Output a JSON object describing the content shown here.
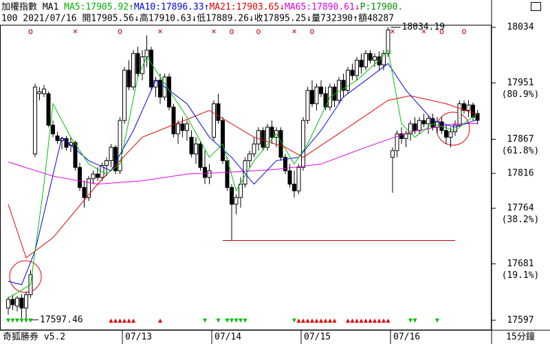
{
  "chart_data": {
    "type": "candlestick",
    "header": [
      {
        "text": "加權指數 MA1 ",
        "color": "#000000"
      },
      {
        "text": "MA5:17905.92↑",
        "color": "#00b000"
      },
      {
        "text": "MA10:17896.33↑",
        "color": "#0000e0"
      },
      {
        "text": "MA21:17903.65↓",
        "color": "#e00000"
      },
      {
        "text": "MA65:17890.61↓",
        "color": "#e000e0"
      },
      {
        "text": "P:17900.",
        "color": "#009000"
      }
    ],
    "subheader": "100 2021/07/16 開17905.56↓高17910.63↓低17889.26↓收17895.25↓量732390↑額48287",
    "footer_left": "奇狐勝券 v5.2",
    "period": "15分鐘",
    "categories": [
      null,
      null,
      null,
      null,
      null,
      null,
      null,
      null,
      null,
      null,
      null,
      null,
      null,
      null,
      null,
      null,
      null,
      null,
      null,
      null,
      null,
      null,
      null,
      null,
      null,
      null,
      "07/13",
      null,
      null,
      null,
      null,
      null,
      null,
      null,
      null,
      null,
      null,
      null,
      null,
      null,
      null,
      null,
      null,
      null,
      null,
      null,
      "07/14",
      null,
      null,
      null,
      null,
      null,
      null,
      null,
      null,
      null,
      null,
      null,
      null,
      null,
      null,
      null,
      null,
      null,
      null,
      null,
      "07/15",
      null,
      null,
      null,
      null,
      null,
      null,
      null,
      null,
      null,
      null,
      null,
      null,
      null,
      null,
      null,
      null,
      null,
      null,
      null,
      "07/16",
      null,
      null,
      null,
      null,
      null,
      null,
      null,
      null,
      null,
      null,
      null,
      null,
      null,
      null,
      null,
      null,
      null,
      null,
      null
    ],
    "ohlc": [
      [
        17615,
        17632,
        17605,
        17628
      ],
      [
        17628,
        17635,
        17612,
        17620
      ],
      [
        17618,
        17633,
        17610,
        17630
      ],
      [
        17630,
        17636,
        17600,
        17615
      ],
      [
        17615,
        17640,
        17597.46,
        17635
      ],
      [
        17635,
        17672,
        17630,
        17665
      ],
      [
        17845,
        17950,
        17840,
        17945
      ],
      [
        17935,
        17945,
        17925,
        17938
      ],
      [
        17935,
        17948,
        17930,
        17942
      ],
      [
        17935,
        17938,
        17885,
        17888
      ],
      [
        17888,
        17895,
        17870,
        17875
      ],
      [
        17872,
        17878,
        17860,
        17865
      ],
      [
        17865,
        17870,
        17852,
        17868
      ],
      [
        17868,
        17872,
        17850,
        17855
      ],
      [
        17858,
        17870,
        17848,
        17862
      ],
      [
        17862,
        17865,
        17820,
        17825
      ],
      [
        17825,
        17832,
        17790,
        17795
      ],
      [
        17795,
        17805,
        17765,
        17780
      ],
      [
        17780,
        17812,
        17775,
        17808
      ],
      [
        17808,
        17820,
        17800,
        17815
      ],
      [
        17815,
        17825,
        17805,
        17810
      ],
      [
        17810,
        17832,
        17805,
        17828
      ],
      [
        17828,
        17840,
        17812,
        17835
      ],
      [
        17835,
        17860,
        17825,
        17855
      ],
      [
        17855,
        17858,
        17815,
        17820
      ],
      [
        17820,
        17900,
        17815,
        17895
      ],
      [
        17895,
        17975,
        17890,
        17970
      ],
      [
        17970,
        17985,
        17940,
        17945
      ],
      [
        17945,
        18000,
        17940,
        17995
      ],
      [
        17995,
        18005,
        17960,
        17965
      ],
      [
        17965,
        18000,
        17955,
        17990
      ],
      [
        17990,
        18022,
        17975,
        18000
      ],
      [
        18000,
        18005,
        17940,
        17945
      ],
      [
        17945,
        17960,
        17930,
        17955
      ],
      [
        17955,
        17965,
        17920,
        17930
      ],
      [
        17930,
        17965,
        17925,
        17960
      ],
      [
        17960,
        17965,
        17910,
        17915
      ],
      [
        17915,
        17920,
        17870,
        17875
      ],
      [
        17875,
        17895,
        17860,
        17890
      ],
      [
        17890,
        17900,
        17870,
        17880
      ],
      [
        17880,
        17895,
        17865,
        17890
      ],
      [
        17870,
        17880,
        17840,
        17845
      ],
      [
        17845,
        17870,
        17830,
        17860
      ],
      [
        17860,
        17865,
        17820,
        17825
      ],
      [
        17825,
        17850,
        17800,
        17810
      ],
      [
        17810,
        17830,
        17800,
        17820
      ],
      [
        17870,
        17925,
        17865,
        17920
      ],
      [
        17920,
        17935,
        17890,
        17895
      ],
      [
        17895,
        17900,
        17830,
        17835
      ],
      [
        17835,
        17840,
        17790,
        17795
      ],
      [
        17795,
        17800,
        17716,
        17770
      ],
      [
        17770,
        17785,
        17755,
        17780
      ],
      [
        17780,
        17810,
        17765,
        17800
      ],
      [
        17800,
        17840,
        17795,
        17835
      ],
      [
        17835,
        17850,
        17825,
        17845
      ],
      [
        17845,
        17870,
        17840,
        17860
      ],
      [
        17860,
        17885,
        17850,
        17880
      ],
      [
        17880,
        17885,
        17850,
        17855
      ],
      [
        17855,
        17890,
        17850,
        17885
      ],
      [
        17885,
        17895,
        17860,
        17870
      ],
      [
        17870,
        17885,
        17855,
        17880
      ],
      [
        17880,
        17885,
        17835,
        17840
      ],
      [
        17840,
        17845,
        17815,
        17820
      ],
      [
        17820,
        17830,
        17795,
        17800
      ],
      [
        17800,
        17820,
        17780,
        17790
      ],
      [
        17790,
        17830,
        17785,
        17825
      ],
      [
        17825,
        17900,
        17820,
        17895
      ],
      [
        17895,
        17945,
        17890,
        17940
      ],
      [
        17940,
        17955,
        17915,
        17920
      ],
      [
        17920,
        17950,
        17910,
        17945
      ],
      [
        17945,
        17955,
        17930,
        17935
      ],
      [
        17935,
        17945,
        17910,
        17915
      ],
      [
        17915,
        17950,
        17910,
        17945
      ],
      [
        17945,
        17950,
        17915,
        17925
      ],
      [
        17925,
        17960,
        17920,
        17955
      ],
      [
        17955,
        17965,
        17930,
        17940
      ],
      [
        17940,
        17975,
        17935,
        17970
      ],
      [
        17970,
        17980,
        17955,
        17962
      ],
      [
        17962,
        17990,
        17955,
        17985
      ],
      [
        17985,
        17995,
        17965,
        17975
      ],
      [
        17975,
        18000,
        17970,
        17995
      ],
      [
        17995,
        18000,
        17980,
        17985
      ],
      [
        17985,
        17995,
        17975,
        17990
      ],
      [
        17990,
        17998,
        17970,
        17978
      ],
      [
        17978,
        18000,
        17970,
        17995
      ],
      [
        17995,
        18034.19,
        17990,
        18030
      ],
      [
        17840,
        17855,
        17787,
        17850
      ],
      [
        17850,
        17880,
        17840,
        17875
      ],
      [
        17875,
        17885,
        17860,
        17868
      ],
      [
        17868,
        17880,
        17855,
        17875
      ],
      [
        17875,
        17895,
        17865,
        17890
      ],
      [
        17890,
        17900,
        17875,
        17880
      ],
      [
        17880,
        17900,
        17875,
        17895
      ],
      [
        17895,
        17905,
        17885,
        17890
      ],
      [
        17890,
        17903,
        17875,
        17898
      ],
      [
        17898,
        17905,
        17880,
        17885
      ],
      [
        17885,
        17900,
        17875,
        17893
      ],
      [
        17893,
        17900,
        17875,
        17880
      ],
      [
        17880,
        17888,
        17860,
        17870
      ],
      [
        17870,
        17885,
        17855,
        17878
      ],
      [
        17878,
        17895,
        17872,
        17888
      ],
      [
        17888,
        17925,
        17885,
        17920
      ],
      [
        17920,
        17925,
        17905,
        17910
      ],
      [
        17910,
        17925,
        17900,
        17918
      ],
      [
        17918,
        17922,
        17895,
        17900
      ],
      [
        17905.56,
        17910.63,
        17889.26,
        17895.25
      ]
    ],
    "lines": [
      {
        "color": "#e000e0",
        "x": [
          0,
          10,
          20,
          30,
          40,
          50,
          60,
          70,
          80,
          90,
          100,
          105
        ],
        "values": [
          17833,
          17812,
          17800,
          17805,
          17815,
          17818,
          17822,
          17830,
          17855,
          17878,
          17890,
          17890.61
        ]
      },
      {
        "color": "#e00000",
        "x": [
          0,
          4,
          10,
          20,
          30,
          45,
          55,
          62,
          66,
          75,
          85,
          90,
          98,
          105
        ],
        "values": [
          17770,
          17690,
          17720,
          17800,
          17870,
          17910,
          17870,
          17855,
          17840,
          17880,
          17925,
          17932,
          17920,
          17903.65
        ]
      },
      {
        "color": "#0000e0",
        "x": [
          0,
          3,
          6,
          12,
          18,
          23,
          28,
          33,
          40,
          45,
          50,
          55,
          60,
          65,
          70,
          75,
          80,
          85,
          89,
          95,
          100,
          105
        ],
        "values": [
          17655,
          17650,
          17700,
          17870,
          17835,
          17820,
          17880,
          17955,
          17920,
          17870,
          17840,
          17800,
          17835,
          17840,
          17880,
          17930,
          17955,
          17980,
          17940,
          17895,
          17885,
          17896.33
        ]
      },
      {
        "color": "#00c000",
        "x": [
          0,
          5,
          8,
          10,
          14,
          18,
          22,
          25,
          29,
          31,
          35,
          40,
          45,
          48,
          51,
          55,
          60,
          64,
          67,
          72,
          78,
          83,
          85,
          88,
          91,
          95,
          100,
          105
        ],
        "values": [
          17630,
          17650,
          17800,
          17920,
          17870,
          17830,
          17815,
          17830,
          17960,
          17990,
          17950,
          17900,
          17840,
          17860,
          17790,
          17835,
          17875,
          17830,
          17860,
          17930,
          17955,
          17985,
          18000,
          17890,
          17870,
          17890,
          17880,
          17905.92
        ]
      }
    ],
    "ylim": [
      17584,
      18044
    ],
    "yticks": [
      17597,
      17681,
      17764,
      17816,
      17867,
      17951,
      18034
    ],
    "fib_labels": [
      {
        "value": 17951,
        "label": "(80.9%)"
      },
      {
        "value": 17867,
        "label": "(61.8%)"
      },
      {
        "value": 17764,
        "label": "(38.2%)"
      },
      {
        "value": 17681,
        "label": "(19.1%)"
      }
    ],
    "annotations": [
      {
        "x": 85,
        "value": 18034.19,
        "label": "18034.19"
      },
      {
        "x": 4,
        "value": 17597.46,
        "label": "17597.46"
      }
    ],
    "hline": {
      "value": 17716,
      "x": [
        48,
        100
      ],
      "color": "#c00000"
    },
    "signals": [
      {
        "x": 5,
        "label": "o"
      },
      {
        "x": 15,
        "label": "×"
      },
      {
        "x": 25,
        "label": "o"
      },
      {
        "x": 34,
        "label": "×"
      },
      {
        "x": 46,
        "label": "×"
      },
      {
        "x": 50,
        "label": "o"
      },
      {
        "x": 56,
        "label": "o"
      },
      {
        "x": 64,
        "label": "×"
      },
      {
        "x": 68,
        "label": "o"
      },
      {
        "x": 86,
        "label": "×"
      },
      {
        "x": 93,
        "label": "×"
      },
      {
        "x": 97,
        "label": "o"
      },
      {
        "x": 102,
        "label": "o"
      }
    ],
    "down_signals": {
      "color": "#00c000",
      "x": [
        0,
        1,
        2,
        3,
        4,
        5,
        44,
        47,
        49,
        50,
        51,
        52,
        53,
        64,
        90,
        91,
        96
      ]
    },
    "up_signals": {
      "color": "#e00000",
      "x": [
        23,
        24,
        25,
        26,
        27,
        28,
        34,
        65,
        66,
        67,
        68,
        69,
        70,
        71,
        72,
        73,
        76,
        77,
        78,
        79,
        80,
        81,
        82,
        83,
        84,
        85
      ]
    }
  }
}
